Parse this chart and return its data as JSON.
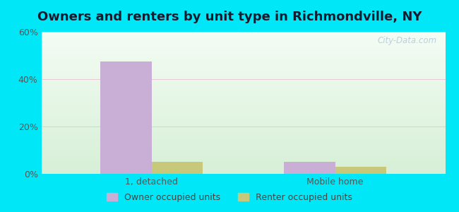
{
  "title": "Owners and renters by unit type in Richmondville, NY",
  "categories": [
    "1, detached",
    "Mobile home"
  ],
  "owner_values": [
    47.5,
    5.0
  ],
  "renter_values": [
    5.0,
    3.0
  ],
  "owner_color": "#c9aed6",
  "renter_color": "#c8c87a",
  "ylim": [
    0,
    60
  ],
  "yticks": [
    0,
    20,
    40,
    60
  ],
  "ytick_labels": [
    "0%",
    "20%",
    "40%",
    "60%"
  ],
  "background_outer": "#00e8f8",
  "legend_owner": "Owner occupied units",
  "legend_renter": "Renter occupied units",
  "bar_width": 0.28,
  "watermark": "City-Data.com",
  "title_fontsize": 13,
  "tick_fontsize": 9,
  "legend_fontsize": 9
}
